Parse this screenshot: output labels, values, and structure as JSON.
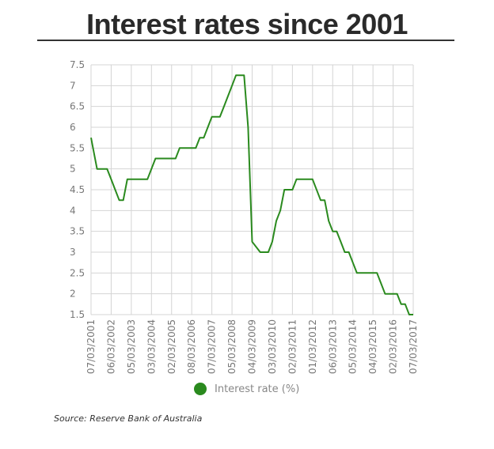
{
  "chart_data": {
    "type": "line",
    "title": "Interest rates since 2001",
    "xlabel": "",
    "ylabel": "",
    "ylim": [
      1.5,
      7.5
    ],
    "yticks": [
      "7.5",
      "7",
      "6.5",
      "6",
      "5.5",
      "5",
      "4.5",
      "4",
      "3.5",
      "3",
      "2.5",
      "2",
      "1.5"
    ],
    "xticks": [
      "07/03/2001",
      "06/03/2002",
      "05/03/2003",
      "03/03/2004",
      "02/03/2005",
      "08/03/2006",
      "07/03/2007",
      "05/03/2008",
      "04/03/2009",
      "03/03/2010",
      "02/03/2011",
      "01/03/2012",
      "06/03/2013",
      "05/03/2014",
      "04/03/2015",
      "02/03/2016",
      "07/03/2017"
    ],
    "grid": true,
    "legend_position": "bottom",
    "series": [
      {
        "name": "Interest rate (%)",
        "color": "#2a8a1e",
        "x": [
          0,
          0.1,
          0.3,
          0.8,
          1.0,
          1.2,
          1.4,
          1.6,
          1.8,
          2.2,
          2.4,
          2.6,
          2.8,
          3.2,
          3.4,
          3.6,
          4.0,
          4.2,
          4.4,
          4.6,
          4.8,
          5.2,
          5.4,
          5.6,
          5.8,
          6.0,
          6.2,
          6.4,
          6.6,
          6.8,
          7.0,
          7.2,
          7.4,
          7.6,
          7.8,
          8.0,
          8.4,
          8.6,
          8.8,
          9.0,
          9.2,
          9.4,
          9.6,
          9.8,
          10.0,
          10.2,
          10.4,
          10.6,
          11.0,
          11.4,
          11.6,
          11.8,
          12.0,
          12.2,
          12.4,
          12.6,
          12.8,
          13.0,
          13.2,
          13.4,
          13.6,
          13.8,
          14.0,
          14.2,
          14.4,
          14.6,
          14.8,
          15.0,
          15.2,
          15.4,
          15.6,
          15.8,
          16.0
        ],
        "values": [
          5.75,
          5.5,
          5.0,
          5.0,
          4.75,
          4.5,
          4.25,
          4.25,
          4.75,
          4.75,
          4.75,
          4.75,
          4.75,
          5.25,
          5.25,
          5.25,
          5.25,
          5.25,
          5.5,
          5.5,
          5.5,
          5.5,
          5.75,
          5.75,
          6.0,
          6.25,
          6.25,
          6.25,
          6.5,
          6.75,
          7.0,
          7.25,
          7.25,
          7.25,
          6.0,
          3.25,
          3.0,
          3.0,
          3.0,
          3.25,
          3.75,
          4.0,
          4.5,
          4.5,
          4.5,
          4.75,
          4.75,
          4.75,
          4.75,
          4.25,
          4.25,
          3.75,
          3.5,
          3.5,
          3.25,
          3.0,
          3.0,
          2.75,
          2.5,
          2.5,
          2.5,
          2.5,
          2.5,
          2.5,
          2.25,
          2.0,
          2.0,
          2.0,
          2.0,
          1.75,
          1.75,
          1.5,
          1.5
        ]
      }
    ]
  },
  "legend": {
    "label": "Interest rate (%)"
  },
  "source": "Source: Reserve Bank of Australia"
}
